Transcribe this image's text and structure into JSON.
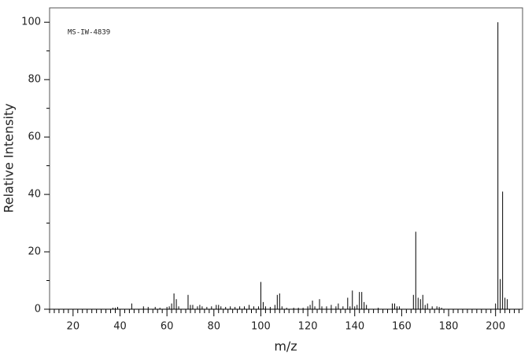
{
  "chart_data": {
    "type": "stem",
    "annotation": "MS-IW-4839",
    "xlabel": "m/z",
    "ylabel": "Relative Intensity",
    "color": "#000000",
    "x": [
      37,
      38,
      39,
      45,
      50,
      52,
      55,
      57,
      60,
      61,
      62,
      63,
      64,
      65,
      69,
      70,
      71,
      73,
      74,
      75,
      77,
      79,
      81,
      82,
      83,
      85,
      87,
      89,
      91,
      93,
      95,
      97,
      99,
      100,
      101,
      102,
      104,
      106,
      107,
      108,
      109,
      111,
      114,
      116,
      118,
      120,
      121,
      122,
      123,
      125,
      126,
      128,
      130,
      132,
      133,
      135,
      137,
      138,
      139,
      140,
      141,
      142,
      143,
      144,
      145,
      150,
      156,
      157,
      158,
      159,
      165,
      166,
      167,
      168,
      169,
      170,
      171,
      173,
      175,
      176,
      177,
      200,
      201,
      202,
      203,
      204,
      205
    ],
    "values": [
      0.5,
      0.5,
      0.8,
      2,
      1,
      0.8,
      0.8,
      0.5,
      0.8,
      1,
      2,
      5.5,
      3.5,
      1,
      5,
      1.5,
      1.5,
      1,
      1.5,
      1,
      0.8,
      1,
      1.5,
      1.5,
      1,
      0.8,
      1,
      0.8,
      1,
      1,
      1.5,
      1,
      1,
      9.5,
      2.5,
      1,
      0.8,
      1.5,
      5,
      5.5,
      1,
      0.5,
      0.5,
      0.5,
      0.5,
      1,
      1.5,
      3,
      1,
      3.5,
      1,
      1,
      1.5,
      1,
      2,
      1,
      4,
      1,
      6.5,
      1,
      1.5,
      6,
      6,
      2.5,
      1.5,
      0.5,
      2,
      2,
      1,
      1,
      5,
      27,
      4,
      3.5,
      5,
      1.5,
      2,
      1,
      1,
      0.8,
      0.5,
      2,
      100,
      10.5,
      41,
      4,
      3.5
    ],
    "xlim": [
      10,
      211.5
    ],
    "ylim": [
      0,
      105
    ],
    "xticks": [
      20,
      40,
      60,
      80,
      100,
      120,
      140,
      160,
      180,
      200
    ],
    "yticks": [
      0,
      20,
      40,
      60,
      80,
      100
    ],
    "xminorticks": [
      10,
      12,
      14,
      16,
      18,
      22,
      24,
      26,
      28,
      30,
      32,
      34,
      36,
      38,
      42,
      44,
      46,
      48,
      50,
      52,
      54,
      56,
      58,
      62,
      64,
      66,
      68,
      70,
      72,
      74,
      76,
      78,
      82,
      84,
      86,
      88,
      90,
      92,
      94,
      96,
      98,
      102,
      104,
      106,
      108,
      110,
      112,
      114,
      116,
      118,
      122,
      124,
      126,
      128,
      130,
      132,
      134,
      136,
      138,
      142,
      144,
      146,
      148,
      150,
      152,
      154,
      156,
      158,
      162,
      164,
      166,
      168,
      170,
      172,
      174,
      176,
      178,
      182,
      184,
      186,
      188,
      190,
      192,
      194,
      196,
      198,
      202,
      204,
      206,
      208,
      210
    ],
    "yminorticks": [
      10,
      30,
      50,
      70,
      90
    ]
  }
}
